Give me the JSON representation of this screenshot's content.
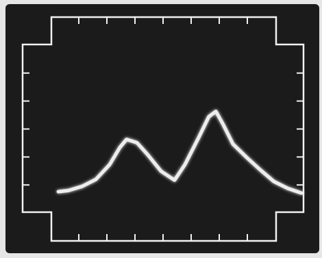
{
  "chart_data": {
    "type": "line",
    "x": [
      1.27,
      1.63,
      2.12,
      2.61,
      3.1,
      3.46,
      3.7,
      4.07,
      4.44,
      4.93,
      5.41,
      5.78,
      6.27,
      6.63,
      6.88,
      7.12,
      7.49,
      7.98,
      8.46,
      8.95,
      9.44,
      9.93
    ],
    "series": [
      {
        "color": "#ffffff",
        "values": [
          1.76,
          1.8,
          1.95,
          2.2,
          2.73,
          3.34,
          3.63,
          3.51,
          3.1,
          2.49,
          2.17,
          2.73,
          3.7,
          4.44,
          4.63,
          4.2,
          3.46,
          2.98,
          2.54,
          2.12,
          1.88,
          1.71
        ]
      }
    ],
    "xlim": [
      0,
      10
    ],
    "ylim": [
      0,
      8
    ],
    "xticks": [
      2,
      3,
      4,
      5,
      6,
      7,
      8
    ],
    "yticks": [
      2,
      3,
      4,
      5,
      6
    ]
  }
}
